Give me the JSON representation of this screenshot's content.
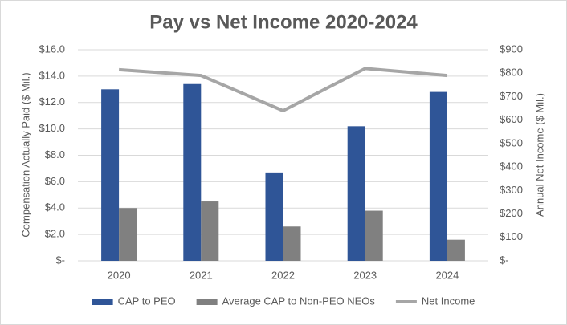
{
  "chart_data": {
    "type": "bar",
    "title": "Pay vs Net Income 2020-2024",
    "categories": [
      "2020",
      "2021",
      "2022",
      "2023",
      "2024"
    ],
    "series": [
      {
        "name": "CAP to PEO",
        "color": "#2f5597",
        "type": "bar",
        "values": [
          13.0,
          13.4,
          6.7,
          10.2,
          12.8
        ]
      },
      {
        "name": "Average CAP to Non-PEO NEOs",
        "color": "#808080",
        "type": "bar",
        "values": [
          4.0,
          4.5,
          2.6,
          3.8,
          1.6
        ]
      },
      {
        "name": "Net Income",
        "color": "#a6a6a6",
        "type": "line",
        "axis": "y2",
        "values": [
          815,
          790,
          640,
          820,
          790
        ]
      }
    ],
    "ylabel": "Compensation Actually Paid ($ Mil.)",
    "y2label": "Annual Net Income ($ Mil.)",
    "ylim": [
      0,
      16
    ],
    "yticks": [
      {
        "value": 0,
        "label": "$-"
      },
      {
        "value": 2,
        "label": "$2.0"
      },
      {
        "value": 4,
        "label": "$4.0"
      },
      {
        "value": 6,
        "label": "$6.0"
      },
      {
        "value": 8,
        "label": "$8.0"
      },
      {
        "value": 10,
        "label": "$10.0"
      },
      {
        "value": 12,
        "label": "$12.0"
      },
      {
        "value": 14,
        "label": "$14.0"
      },
      {
        "value": 16,
        "label": "$16.0"
      }
    ],
    "y2lim": [
      0,
      900
    ],
    "y2ticks": [
      {
        "value": 0,
        "label": "$-"
      },
      {
        "value": 100,
        "label": "$100"
      },
      {
        "value": 200,
        "label": "$200"
      },
      {
        "value": 300,
        "label": "$300"
      },
      {
        "value": 400,
        "label": "$400"
      },
      {
        "value": 500,
        "label": "$500"
      },
      {
        "value": 600,
        "label": "$600"
      },
      {
        "value": 700,
        "label": "$700"
      },
      {
        "value": 800,
        "label": "$800"
      },
      {
        "value": 900,
        "label": "$900"
      }
    ],
    "grid": true,
    "legend": "bottom"
  }
}
